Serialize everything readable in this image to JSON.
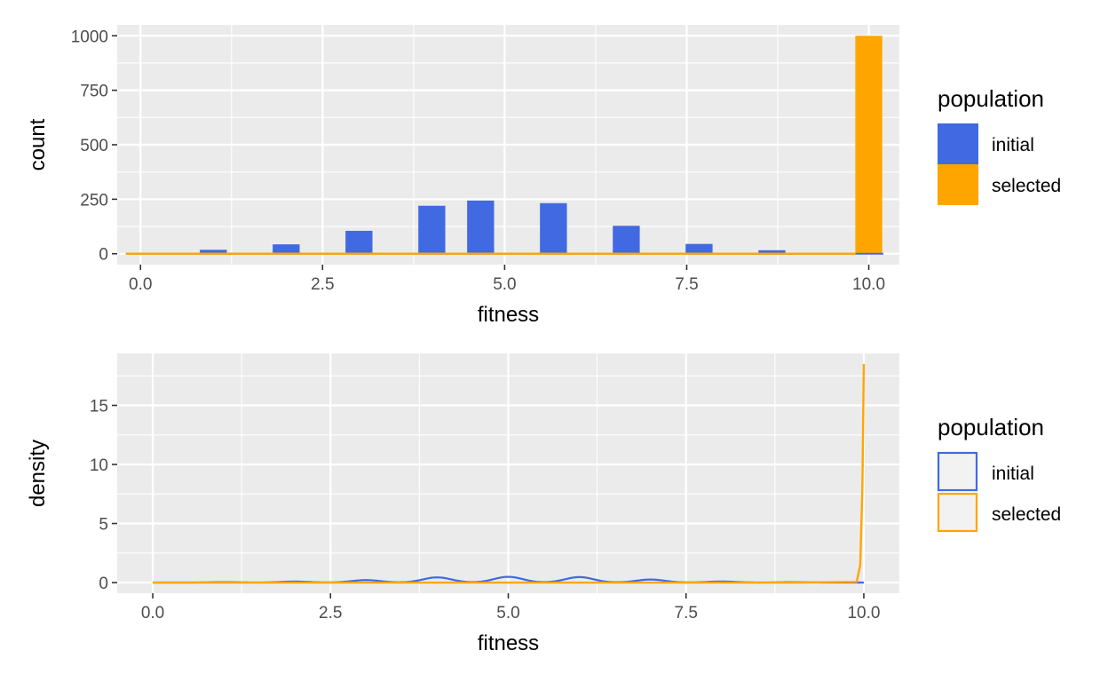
{
  "colors": {
    "initial": "#4169E1",
    "selected": "#FFA500",
    "panel_bg": "#EBEBEB",
    "grid": "#FFFFFF",
    "tick_text": "#4D4D4D"
  },
  "chart_data": [
    {
      "type": "bar",
      "subtype": "histogram",
      "xlabel": "fitness",
      "ylabel": "count",
      "xlim": [
        -0.32,
        10.42
      ],
      "ylim": [
        -50,
        1050
      ],
      "xticks": [
        0.0,
        2.5,
        5.0,
        7.5,
        10.0
      ],
      "xtick_labels": [
        "0.0",
        "2.5",
        "5.0",
        "7.5",
        "10.0"
      ],
      "yticks": [
        0,
        250,
        500,
        750,
        1000
      ],
      "ytick_labels": [
        "0",
        "250",
        "500",
        "750",
        "1000"
      ],
      "grid": true,
      "bin_width": 0.37,
      "legend": {
        "title": "population",
        "position": "right",
        "entries": [
          "initial",
          "selected"
        ]
      },
      "series": [
        {
          "name": "initial",
          "bins": [
            {
              "x": 0.0,
              "count": 2
            },
            {
              "x": 1.0,
              "count": 18
            },
            {
              "x": 2.0,
              "count": 43
            },
            {
              "x": 3.0,
              "count": 105
            },
            {
              "x": 4.0,
              "count": 220
            },
            {
              "x": 4.67,
              "count": 244
            },
            {
              "x": 5.67,
              "count": 232
            },
            {
              "x": 6.67,
              "count": 128
            },
            {
              "x": 7.67,
              "count": 45
            },
            {
              "x": 8.67,
              "count": 16
            },
            {
              "x": 10.0,
              "count": 1
            }
          ]
        },
        {
          "name": "selected",
          "bins": [
            {
              "x": 10.0,
              "count": 1000
            }
          ]
        }
      ]
    },
    {
      "type": "line",
      "subtype": "density",
      "xlabel": "fitness",
      "ylabel": "density",
      "xlim": [
        -0.5,
        10.5
      ],
      "ylim": [
        -0.9,
        19.4
      ],
      "xticks": [
        0.0,
        2.5,
        5.0,
        7.5,
        10.0
      ],
      "xtick_labels": [
        "0.0",
        "2.5",
        "5.0",
        "7.5",
        "10.0"
      ],
      "yticks": [
        0,
        5,
        10,
        15
      ],
      "ytick_labels": [
        "0",
        "5",
        "10",
        "15"
      ],
      "grid": true,
      "legend": {
        "title": "population",
        "position": "right",
        "entries": [
          "initial",
          "selected"
        ]
      },
      "series": [
        {
          "name": "initial",
          "peaks": [
            {
              "x": 0,
              "weight": 0.002
            },
            {
              "x": 1,
              "weight": 0.018
            },
            {
              "x": 2,
              "weight": 0.043
            },
            {
              "x": 3,
              "weight": 0.105
            },
            {
              "x": 4,
              "weight": 0.22
            },
            {
              "x": 5,
              "weight": 0.244
            },
            {
              "x": 6,
              "weight": 0.232
            },
            {
              "x": 7,
              "weight": 0.128
            },
            {
              "x": 8,
              "weight": 0.045
            },
            {
              "x": 9,
              "weight": 0.016
            }
          ],
          "bandwidth": 0.2,
          "range": [
            0,
            10
          ]
        },
        {
          "name": "selected",
          "x": [
            0,
            9.0,
            9.9,
            9.95,
            9.98,
            10.0
          ],
          "y": [
            0,
            0,
            0.05,
            1.5,
            8.0,
            18.5
          ]
        }
      ]
    }
  ]
}
